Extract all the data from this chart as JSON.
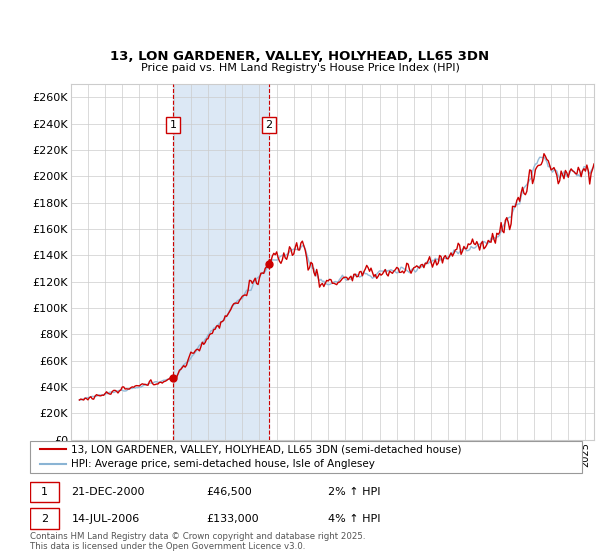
{
  "title": "13, LON GARDENER, VALLEY, HOLYHEAD, LL65 3DN",
  "subtitle": "Price paid vs. HM Land Registry's House Price Index (HPI)",
  "ylabel_ticks": [
    "£0",
    "£20K",
    "£40K",
    "£60K",
    "£80K",
    "£100K",
    "£120K",
    "£140K",
    "£160K",
    "£180K",
    "£200K",
    "£220K",
    "£240K",
    "£260K"
  ],
  "ylim": [
    0,
    270000
  ],
  "legend_line1": "13, LON GARDENER, VALLEY, HOLYHEAD, LL65 3DN (semi-detached house)",
  "legend_line2": "HPI: Average price, semi-detached house, Isle of Anglesey",
  "annotation1_label": "1",
  "annotation1_date": "21-DEC-2000",
  "annotation1_price": "£46,500",
  "annotation1_hpi": "2% ↑ HPI",
  "annotation2_label": "2",
  "annotation2_date": "14-JUL-2006",
  "annotation2_price": "£133,000",
  "annotation2_hpi": "4% ↑ HPI",
  "footer": "Contains HM Land Registry data © Crown copyright and database right 2025.\nThis data is licensed under the Open Government Licence v3.0.",
  "line_color_red": "#cc0000",
  "line_color_blue": "#8ab4d4",
  "shade_color": "#dce8f5",
  "annotation_box_color": "#cc0000",
  "grid_color": "#cccccc",
  "background_color": "#ffffff",
  "sale1_x": 2000.97,
  "sale1_y": 46500,
  "sale2_x": 2006.54,
  "sale2_y": 133000,
  "xmin": 1995.5,
  "xmax": 2025.5
}
